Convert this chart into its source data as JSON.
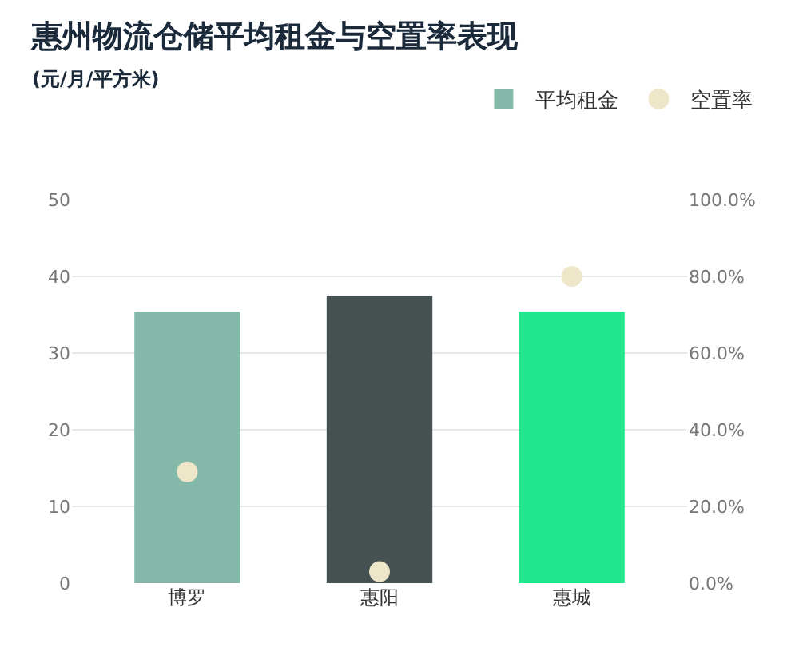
{
  "chart_data": {
    "type": "bar",
    "title": "惠州物流仓储平均租金与空置率表现",
    "subtitle": "(元/月/平方米)",
    "categories": [
      "博罗",
      "惠阳",
      "惠城"
    ],
    "series": [
      {
        "name": "平均租金",
        "color": "#84b9aa",
        "colors": [
          "#84b9aa",
          "#465252",
          "#20e68c"
        ],
        "values": [
          35.4,
          37.5,
          35.4
        ]
      },
      {
        "name": "空置率",
        "type": "scatter",
        "axis": "y2",
        "color": "#ede6c8",
        "marker": "circle",
        "values": [
          29,
          3,
          80
        ]
      }
    ],
    "ylim": [
      0,
      50
    ],
    "yticks": [
      0,
      10,
      20,
      30,
      40,
      50
    ],
    "y2lim": [
      0,
      100
    ],
    "y2ticks": [
      {
        "value": 0,
        "label": "0.0%"
      },
      {
        "value": 20,
        "label": "20.0%"
      },
      {
        "value": 40,
        "label": "40.0%"
      },
      {
        "value": 60,
        "label": "60.0%"
      },
      {
        "value": 80,
        "label": "80.0%"
      },
      {
        "value": 100,
        "label": "100.0%"
      }
    ],
    "grid": "y",
    "legend": "top right"
  }
}
